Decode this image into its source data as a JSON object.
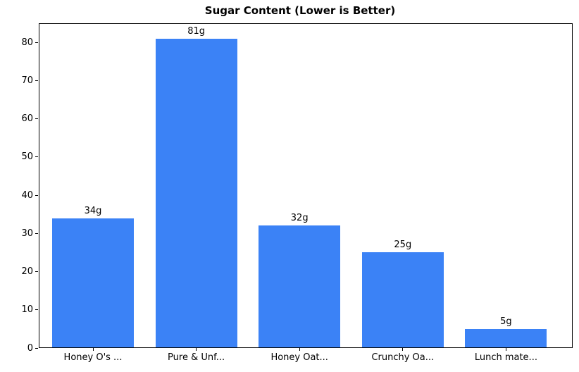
{
  "chart_data": {
    "type": "bar",
    "title": "Sugar Content (Lower is Better)",
    "categories": [
      "Honey O's ...",
      "Pure & Unf...",
      "Honey Oat...",
      "Crunchy Oa...",
      "Lunch mate..."
    ],
    "values": [
      34,
      81,
      32,
      25,
      5
    ],
    "bar_labels": [
      "34g",
      "81g",
      "32g",
      "25g",
      "5g"
    ],
    "unit": "g",
    "xlabel": "",
    "ylabel": "",
    "ylim": [
      0,
      85
    ],
    "yticks": [
      0,
      10,
      20,
      30,
      40,
      50,
      60,
      70,
      80
    ],
    "grid": false,
    "legend": "none",
    "bar_color": "#3b82f6",
    "axis_color": "#000000",
    "text_color": "#000000",
    "background_color": "#ffffff"
  }
}
